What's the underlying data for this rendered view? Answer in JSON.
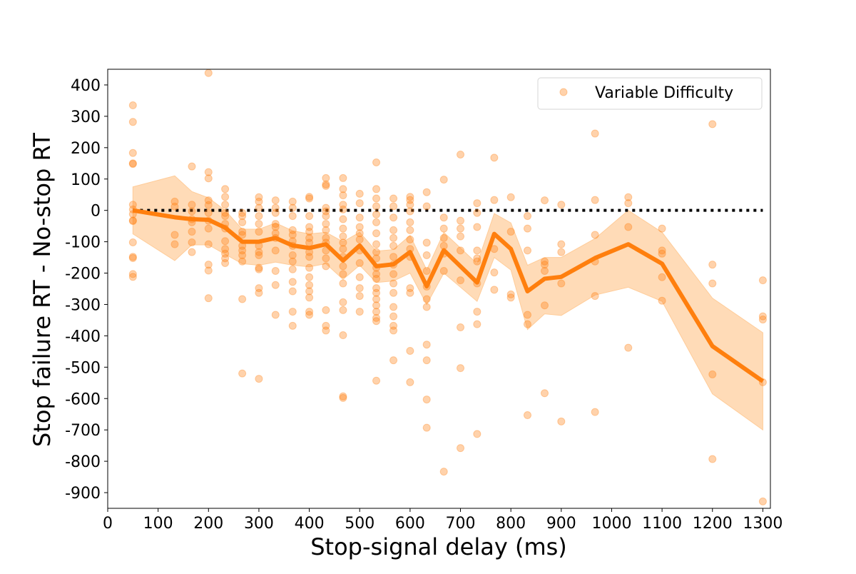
{
  "chart_data": {
    "type": "scatter",
    "title": "",
    "xlabel": "Stop-signal delay (ms)",
    "ylabel": "Stop failure RT - No-stop RT",
    "xlim": [
      0,
      1315
    ],
    "ylim": [
      -950,
      450
    ],
    "xticks": [
      0,
      100,
      200,
      300,
      400,
      500,
      600,
      700,
      800,
      900,
      1000,
      1100,
      1200,
      1300
    ],
    "yticks": [
      400,
      300,
      200,
      100,
      0,
      -100,
      -200,
      -300,
      -400,
      -500,
      -600,
      -700,
      -800,
      -900
    ],
    "legend": {
      "position": "top-right",
      "entries": [
        "Variable Difficulty"
      ]
    },
    "grid": false,
    "colors": {
      "points": "#ff7f0e",
      "line": "#ff7f0e",
      "band": "#ffcc99",
      "reference": "#000000"
    },
    "reference_line": {
      "y": 0,
      "x_from": 50,
      "x_to": 1300,
      "style": "dotted"
    },
    "scatter_points": [
      [
        50,
        335
      ],
      [
        50,
        282
      ],
      [
        50,
        183
      ],
      [
        50,
        150
      ],
      [
        50,
        148
      ],
      [
        50,
        18
      ],
      [
        50,
        3
      ],
      [
        50,
        -12
      ],
      [
        50,
        -32
      ],
      [
        50,
        -34
      ],
      [
        50,
        -102
      ],
      [
        50,
        -148
      ],
      [
        50,
        -152
      ],
      [
        50,
        -203
      ],
      [
        50,
        -212
      ],
      [
        133,
        28
      ],
      [
        133,
        12
      ],
      [
        133,
        -78
      ],
      [
        133,
        -108
      ],
      [
        167,
        140
      ],
      [
        167,
        18
      ],
      [
        167,
        -3
      ],
      [
        167,
        -28
      ],
      [
        167,
        -38
      ],
      [
        167,
        -68
      ],
      [
        167,
        -102
      ],
      [
        167,
        -133
      ],
      [
        200,
        438
      ],
      [
        200,
        122
      ],
      [
        200,
        102
      ],
      [
        200,
        32
      ],
      [
        200,
        17
      ],
      [
        200,
        -8
      ],
      [
        200,
        -33
      ],
      [
        200,
        -58
      ],
      [
        200,
        -108
      ],
      [
        200,
        -173
      ],
      [
        200,
        -192
      ],
      [
        200,
        -280
      ],
      [
        233,
        68
      ],
      [
        233,
        43
      ],
      [
        233,
        18
      ],
      [
        233,
        -8
      ],
      [
        233,
        -18
      ],
      [
        233,
        -43
      ],
      [
        233,
        -58
      ],
      [
        233,
        -98
      ],
      [
        233,
        -123
      ],
      [
        233,
        -138
      ],
      [
        233,
        -153
      ],
      [
        233,
        -168
      ],
      [
        267,
        -8
      ],
      [
        267,
        -18
      ],
      [
        267,
        -38
      ],
      [
        267,
        -68
      ],
      [
        267,
        -78
      ],
      [
        267,
        -113
      ],
      [
        267,
        -128
      ],
      [
        267,
        -143
      ],
      [
        267,
        -163
      ],
      [
        267,
        -283
      ],
      [
        267,
        -520
      ],
      [
        300,
        42
      ],
      [
        300,
        28
      ],
      [
        300,
        8
      ],
      [
        300,
        -18
      ],
      [
        300,
        -43
      ],
      [
        300,
        -68
      ],
      [
        300,
        -113
      ],
      [
        300,
        -133
      ],
      [
        300,
        -143
      ],
      [
        300,
        -183
      ],
      [
        300,
        -188
      ],
      [
        300,
        -248
      ],
      [
        300,
        -263
      ],
      [
        300,
        -537
      ],
      [
        333,
        32
      ],
      [
        333,
        8
      ],
      [
        333,
        -8
      ],
      [
        333,
        -43
      ],
      [
        333,
        -53
      ],
      [
        333,
        -73
      ],
      [
        333,
        -88
      ],
      [
        333,
        -128
      ],
      [
        333,
        -193
      ],
      [
        333,
        -238
      ],
      [
        333,
        -333
      ],
      [
        367,
        28
      ],
      [
        367,
        8
      ],
      [
        367,
        -18
      ],
      [
        367,
        -63
      ],
      [
        367,
        -78
      ],
      [
        367,
        -98
      ],
      [
        367,
        -113
      ],
      [
        367,
        -143
      ],
      [
        367,
        -163
      ],
      [
        367,
        -188
      ],
      [
        367,
        -228
      ],
      [
        367,
        -258
      ],
      [
        367,
        -323
      ],
      [
        367,
        -368
      ],
      [
        400,
        43
      ],
      [
        400,
        38
      ],
      [
        400,
        -18
      ],
      [
        400,
        -53
      ],
      [
        400,
        -68
      ],
      [
        400,
        -88
      ],
      [
        400,
        -103
      ],
      [
        400,
        -133
      ],
      [
        400,
        -148
      ],
      [
        400,
        -183
      ],
      [
        400,
        -213
      ],
      [
        400,
        -238
      ],
      [
        400,
        -258
      ],
      [
        400,
        -278
      ],
      [
        400,
        -323
      ],
      [
        400,
        -333
      ],
      [
        433,
        103
      ],
      [
        433,
        83
      ],
      [
        433,
        78
      ],
      [
        433,
        8
      ],
      [
        433,
        -3
      ],
      [
        433,
        -18
      ],
      [
        433,
        -43
      ],
      [
        433,
        -63
      ],
      [
        433,
        -88
      ],
      [
        433,
        -103
      ],
      [
        433,
        -128
      ],
      [
        433,
        -153
      ],
      [
        433,
        -178
      ],
      [
        433,
        -318
      ],
      [
        433,
        -368
      ],
      [
        433,
        -383
      ],
      [
        467,
        103
      ],
      [
        467,
        68
      ],
      [
        467,
        48
      ],
      [
        467,
        18
      ],
      [
        467,
        3
      ],
      [
        467,
        -28
      ],
      [
        467,
        -58
      ],
      [
        467,
        -83
      ],
      [
        467,
        -103
      ],
      [
        467,
        -123
      ],
      [
        467,
        -148
      ],
      [
        467,
        -178
      ],
      [
        467,
        -203
      ],
      [
        467,
        -233
      ],
      [
        467,
        -293
      ],
      [
        467,
        -318
      ],
      [
        467,
        -398
      ],
      [
        467,
        -593
      ],
      [
        467,
        -598
      ],
      [
        500,
        53
      ],
      [
        500,
        23
      ],
      [
        500,
        -23
      ],
      [
        500,
        -53
      ],
      [
        500,
        -73
      ],
      [
        500,
        -93
      ],
      [
        500,
        -128
      ],
      [
        500,
        -168
      ],
      [
        500,
        -213
      ],
      [
        500,
        -248
      ],
      [
        500,
        -273
      ],
      [
        500,
        -323
      ],
      [
        533,
        153
      ],
      [
        533,
        68
      ],
      [
        533,
        38
      ],
      [
        533,
        13
      ],
      [
        533,
        -13
      ],
      [
        533,
        -38
      ],
      [
        533,
        -73
      ],
      [
        533,
        -108
      ],
      [
        533,
        -133
      ],
      [
        533,
        -153
      ],
      [
        533,
        -183
      ],
      [
        533,
        -203
      ],
      [
        533,
        -218
      ],
      [
        533,
        -248
      ],
      [
        533,
        -263
      ],
      [
        533,
        -283
      ],
      [
        533,
        -303
      ],
      [
        533,
        -323
      ],
      [
        533,
        -343
      ],
      [
        533,
        -353
      ],
      [
        533,
        -543
      ],
      [
        567,
        38
      ],
      [
        567,
        13
      ],
      [
        567,
        -23
      ],
      [
        567,
        -63
      ],
      [
        567,
        -88
      ],
      [
        567,
        -113
      ],
      [
        567,
        -148
      ],
      [
        567,
        -173
      ],
      [
        567,
        -203
      ],
      [
        567,
        -233
      ],
      [
        567,
        -263
      ],
      [
        567,
        -308
      ],
      [
        567,
        -338
      ],
      [
        567,
        -368
      ],
      [
        567,
        -383
      ],
      [
        567,
        -478
      ],
      [
        600,
        43
      ],
      [
        600,
        33
      ],
      [
        600,
        18
      ],
      [
        600,
        -3
      ],
      [
        600,
        -38
      ],
      [
        600,
        -63
      ],
      [
        600,
        -93
      ],
      [
        600,
        -123
      ],
      [
        600,
        -148
      ],
      [
        600,
        -248
      ],
      [
        600,
        -263
      ],
      [
        600,
        -448
      ],
      [
        600,
        -548
      ],
      [
        633,
        58
      ],
      [
        633,
        13
      ],
      [
        633,
        -103
      ],
      [
        633,
        -143
      ],
      [
        633,
        -193
      ],
      [
        633,
        -243
      ],
      [
        633,
        -283
      ],
      [
        633,
        -308
      ],
      [
        633,
        -428
      ],
      [
        633,
        -478
      ],
      [
        633,
        -603
      ],
      [
        633,
        -693
      ],
      [
        667,
        98
      ],
      [
        667,
        -23
      ],
      [
        667,
        -58
      ],
      [
        667,
        -88
      ],
      [
        667,
        -113
      ],
      [
        667,
        -138
      ],
      [
        667,
        -193
      ],
      [
        667,
        -833
      ],
      [
        700,
        178
      ],
      [
        700,
        -33
      ],
      [
        700,
        -58
      ],
      [
        700,
        -83
      ],
      [
        700,
        -128
      ],
      [
        700,
        -223
      ],
      [
        700,
        -373
      ],
      [
        700,
        -503
      ],
      [
        700,
        -758
      ],
      [
        733,
        23
      ],
      [
        733,
        -8
      ],
      [
        733,
        -53
      ],
      [
        733,
        -128
      ],
      [
        733,
        -153
      ],
      [
        733,
        -163
      ],
      [
        733,
        -233
      ],
      [
        733,
        -323
      ],
      [
        733,
        -363
      ],
      [
        733,
        -713
      ],
      [
        767,
        168
      ],
      [
        767,
        33
      ],
      [
        767,
        -123
      ],
      [
        767,
        -198
      ],
      [
        767,
        -253
      ],
      [
        800,
        42
      ],
      [
        800,
        -68
      ],
      [
        800,
        -268
      ],
      [
        800,
        -278
      ],
      [
        833,
        -18
      ],
      [
        833,
        -58
      ],
      [
        833,
        -128
      ],
      [
        833,
        -333
      ],
      [
        833,
        -363
      ],
      [
        833,
        -653
      ],
      [
        867,
        32
      ],
      [
        867,
        -163
      ],
      [
        867,
        -173
      ],
      [
        867,
        -193
      ],
      [
        867,
        -303
      ],
      [
        867,
        -583
      ],
      [
        900,
        18
      ],
      [
        900,
        -108
      ],
      [
        900,
        -133
      ],
      [
        900,
        -233
      ],
      [
        900,
        -673
      ],
      [
        967,
        245
      ],
      [
        967,
        33
      ],
      [
        967,
        -78
      ],
      [
        967,
        -163
      ],
      [
        967,
        -273
      ],
      [
        967,
        -643
      ],
      [
        1033,
        42
      ],
      [
        1033,
        23
      ],
      [
        1033,
        -53
      ],
      [
        1033,
        -438
      ],
      [
        1100,
        -58
      ],
      [
        1100,
        -128
      ],
      [
        1100,
        -138
      ],
      [
        1100,
        -213
      ],
      [
        1100,
        -288
      ],
      [
        1200,
        275
      ],
      [
        1200,
        -173
      ],
      [
        1200,
        -233
      ],
      [
        1200,
        -523
      ],
      [
        1200,
        -793
      ],
      [
        1300,
        -223
      ],
      [
        1300,
        -338
      ],
      [
        1300,
        -348
      ],
      [
        1300,
        -548
      ],
      [
        1300,
        -928
      ]
    ],
    "mean_line": {
      "x": [
        50,
        133,
        167,
        200,
        233,
        267,
        300,
        333,
        367,
        400,
        433,
        467,
        500,
        533,
        567,
        600,
        633,
        667,
        733,
        767,
        800,
        833,
        867,
        900,
        967,
        1033,
        1100,
        1200,
        1300
      ],
      "y": [
        0,
        -22,
        -28,
        -30,
        -55,
        -100,
        -100,
        -88,
        -112,
        -120,
        -108,
        -160,
        -112,
        -178,
        -172,
        -133,
        -242,
        -127,
        -230,
        -75,
        -123,
        -258,
        -218,
        -212,
        -152,
        -108,
        -170,
        -433,
        -545
      ]
    },
    "confidence_band": {
      "x": [
        50,
        133,
        167,
        200,
        233,
        267,
        300,
        333,
        367,
        400,
        433,
        467,
        500,
        533,
        567,
        600,
        633,
        667,
        733,
        767,
        800,
        833,
        867,
        900,
        967,
        1033,
        1100,
        1200,
        1300
      ],
      "upper": [
        75,
        110,
        60,
        40,
        0,
        -60,
        -60,
        -40,
        -65,
        -75,
        -70,
        -100,
        -70,
        -130,
        -125,
        -80,
        -190,
        -70,
        -170,
        -10,
        -40,
        -175,
        -150,
        -150,
        -90,
        0,
        -70,
        -280,
        -390
      ],
      "lower": [
        -75,
        -160,
        -110,
        -110,
        -140,
        -170,
        -175,
        -165,
        -175,
        -180,
        -170,
        -220,
        -175,
        -230,
        -225,
        -200,
        -300,
        -200,
        -290,
        -150,
        -190,
        -380,
        -330,
        -335,
        -270,
        -245,
        -290,
        -585,
        -700
      ]
    }
  }
}
